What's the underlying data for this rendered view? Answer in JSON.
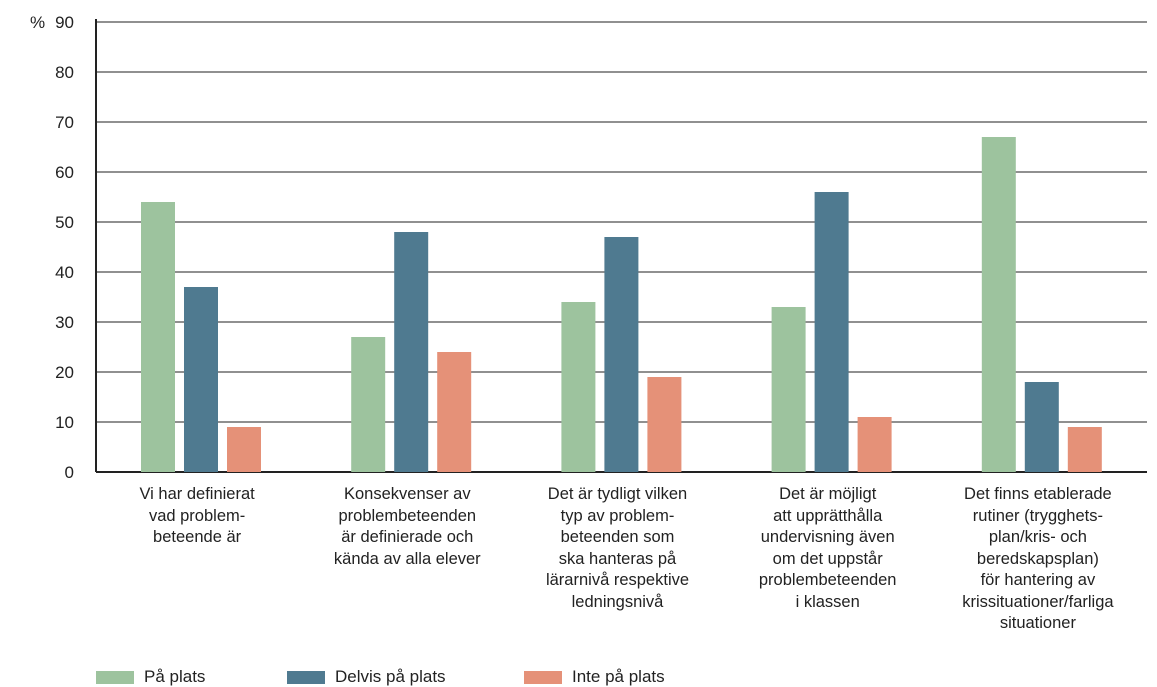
{
  "chart_data": {
    "type": "bar",
    "y_unit_label": "%",
    "ylim": [
      0,
      90
    ],
    "yticks": [
      0,
      10,
      20,
      30,
      40,
      50,
      60,
      70,
      80,
      90
    ],
    "grid": true,
    "legend_position": "bottom-left",
    "categories": [
      "Vi har definierat\nvad problem-\nbeteende är",
      "Konsekvenser av\nproblembeteenden\när definierade och\nkända av alla elever",
      "Det är tydligt vilken\ntyp av problem-\nbeteenden som\nska hanteras på\nlärarnivå respektive\nledningsnivå",
      "Det är möjligt\natt upprätthålla\nundervisning även\nom det uppstår\nproblembeteenden\ni klassen",
      "Det finns etablerade\nrutiner (trygghets-\nplan/kris- och\nberedskapsplan)\nför hantering av\nkrissituationer/farliga\nsituationer"
    ],
    "series": [
      {
        "name": "På plats",
        "color": "#9dc39e",
        "values": [
          54,
          27,
          34,
          33,
          67
        ]
      },
      {
        "name": "Delvis på plats",
        "color": "#4f7a90",
        "values": [
          37,
          48,
          47,
          56,
          18
        ]
      },
      {
        "name": "Inte på plats",
        "color": "#e59178",
        "values": [
          9,
          24,
          19,
          11,
          9
        ]
      }
    ]
  }
}
